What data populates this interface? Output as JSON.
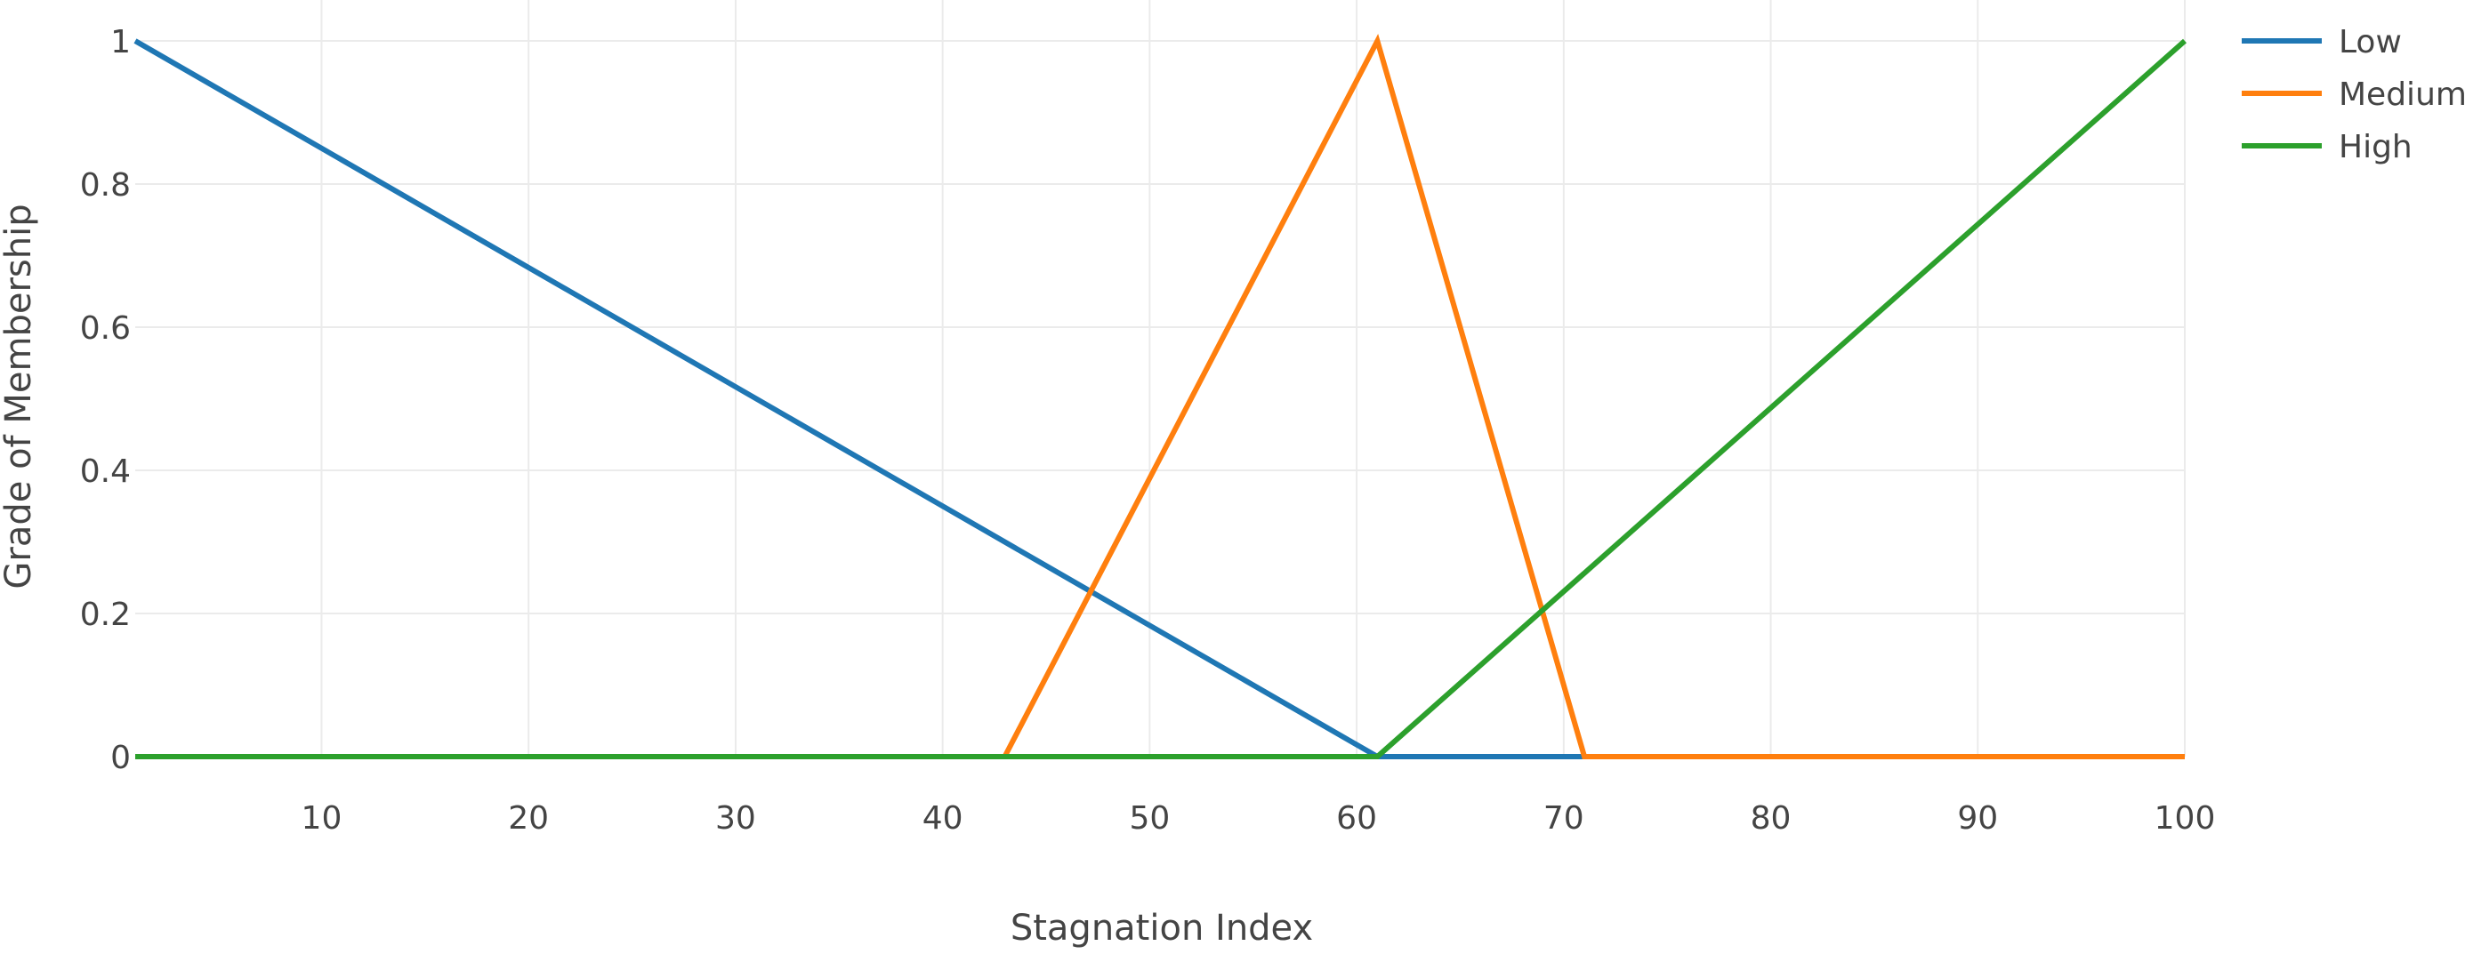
{
  "chart_data": {
    "type": "line",
    "title": "",
    "xlabel": "Stagnation Index",
    "ylabel": "Grade of Membership",
    "xlim": [
      1,
      100
    ],
    "ylim": [
      0,
      1
    ],
    "x_ticks": [
      10,
      20,
      30,
      40,
      50,
      60,
      70,
      80,
      90,
      100
    ],
    "x_tick_labels": [
      "10",
      "20",
      "30",
      "40",
      "50",
      "60",
      "70",
      "80",
      "90",
      "100"
    ],
    "y_ticks": [
      0,
      0.2,
      0.4,
      0.6,
      0.8,
      1
    ],
    "y_tick_labels": [
      "0",
      "0.2",
      "0.4",
      "0.6",
      "0.8",
      "1"
    ],
    "grid": true,
    "legend_position": "top-right",
    "series": [
      {
        "name": "Low",
        "color": "#1f77b4",
        "points": [
          [
            1,
            1
          ],
          [
            61,
            0
          ],
          [
            71,
            0
          ]
        ]
      },
      {
        "name": "Medium",
        "color": "#ff7f0e",
        "points": [
          [
            43,
            0
          ],
          [
            61,
            1
          ],
          [
            71,
            0
          ],
          [
            100,
            0
          ]
        ]
      },
      {
        "name": "High",
        "color": "#2ca02c",
        "points": [
          [
            1,
            0
          ],
          [
            61,
            0
          ],
          [
            100,
            1
          ]
        ]
      }
    ]
  }
}
